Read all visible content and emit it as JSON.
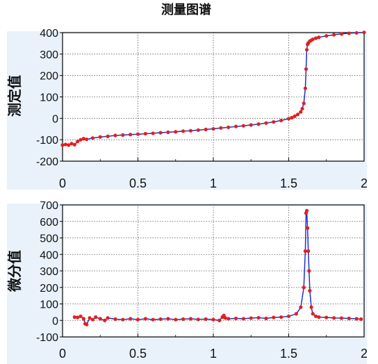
{
  "chart_data": [
    {
      "type": "line",
      "title": "测量图谱",
      "ylabel": "测定值",
      "xlabel": "",
      "xlim": [
        0,
        2
      ],
      "ylim": [
        -200,
        400
      ],
      "x_ticks": [
        "0",
        "0.5",
        "1",
        "1.5",
        "2"
      ],
      "y_ticks": [
        "400",
        "300",
        "200",
        "100",
        "0",
        "-100",
        "-200"
      ],
      "grid": true,
      "series": [
        {
          "line_color": "#1f2fd0",
          "marker_color": "#e02020",
          "x": [
            0.0,
            0.02,
            0.04,
            0.06,
            0.08,
            0.1,
            0.12,
            0.14,
            0.16,
            0.2,
            0.25,
            0.3,
            0.35,
            0.4,
            0.45,
            0.5,
            0.55,
            0.6,
            0.65,
            0.7,
            0.75,
            0.8,
            0.85,
            0.9,
            0.95,
            1.0,
            1.05,
            1.1,
            1.15,
            1.2,
            1.25,
            1.3,
            1.35,
            1.4,
            1.45,
            1.5,
            1.52,
            1.54,
            1.56,
            1.58,
            1.59,
            1.6,
            1.61,
            1.615,
            1.62,
            1.625,
            1.63,
            1.64,
            1.65,
            1.66,
            1.68,
            1.7,
            1.75,
            1.8,
            1.85,
            1.9,
            1.95,
            2.0
          ],
          "y": [
            -125,
            -122,
            -125,
            -118,
            -123,
            -108,
            -100,
            -95,
            -98,
            -92,
            -87,
            -84,
            -80,
            -78,
            -76,
            -74,
            -72,
            -70,
            -67,
            -65,
            -63,
            -60,
            -58,
            -55,
            -52,
            -49,
            -45,
            -42,
            -38,
            -35,
            -31,
            -27,
            -22,
            -17,
            -10,
            -2,
            3,
            10,
            18,
            30,
            45,
            70,
            140,
            230,
            320,
            345,
            352,
            360,
            365,
            369,
            374,
            378,
            385,
            390,
            394,
            397,
            399,
            401
          ]
        }
      ]
    },
    {
      "type": "line",
      "ylabel": "微分值",
      "xlabel": "",
      "xlim": [
        0,
        2
      ],
      "ylim": [
        -100,
        700
      ],
      "x_ticks": [
        "0",
        "0.5",
        "1",
        "1.5",
        "2"
      ],
      "y_ticks": [
        "700",
        "600",
        "500",
        "400",
        "300",
        "200",
        "100",
        "0",
        "-100"
      ],
      "grid": true,
      "series": [
        {
          "line_color": "#1f2fd0",
          "marker_color": "#e02020",
          "x": [
            0.08,
            0.1,
            0.12,
            0.14,
            0.15,
            0.16,
            0.18,
            0.2,
            0.22,
            0.25,
            0.28,
            0.3,
            0.35,
            0.4,
            0.45,
            0.5,
            0.55,
            0.6,
            0.65,
            0.7,
            0.75,
            0.8,
            0.85,
            0.9,
            0.95,
            1.0,
            1.04,
            1.06,
            1.07,
            1.08,
            1.1,
            1.15,
            1.2,
            1.25,
            1.3,
            1.35,
            1.4,
            1.45,
            1.5,
            1.55,
            1.58,
            1.6,
            1.61,
            1.615,
            1.62,
            1.625,
            1.63,
            1.635,
            1.64,
            1.65,
            1.66,
            1.68,
            1.7,
            1.75,
            1.8,
            1.85,
            1.9,
            1.95,
            1.98
          ],
          "y": [
            20,
            18,
            25,
            10,
            -20,
            -25,
            15,
            5,
            20,
            10,
            0,
            15,
            8,
            5,
            10,
            5,
            10,
            5,
            8,
            10,
            5,
            8,
            10,
            6,
            8,
            5,
            0,
            20,
            30,
            15,
            10,
            12,
            10,
            14,
            16,
            12,
            18,
            20,
            25,
            40,
            80,
            200,
            420,
            650,
            665,
            560,
            420,
            300,
            180,
            80,
            40,
            25,
            20,
            18,
            15,
            14,
            12,
            10,
            8
          ]
        }
      ]
    }
  ]
}
